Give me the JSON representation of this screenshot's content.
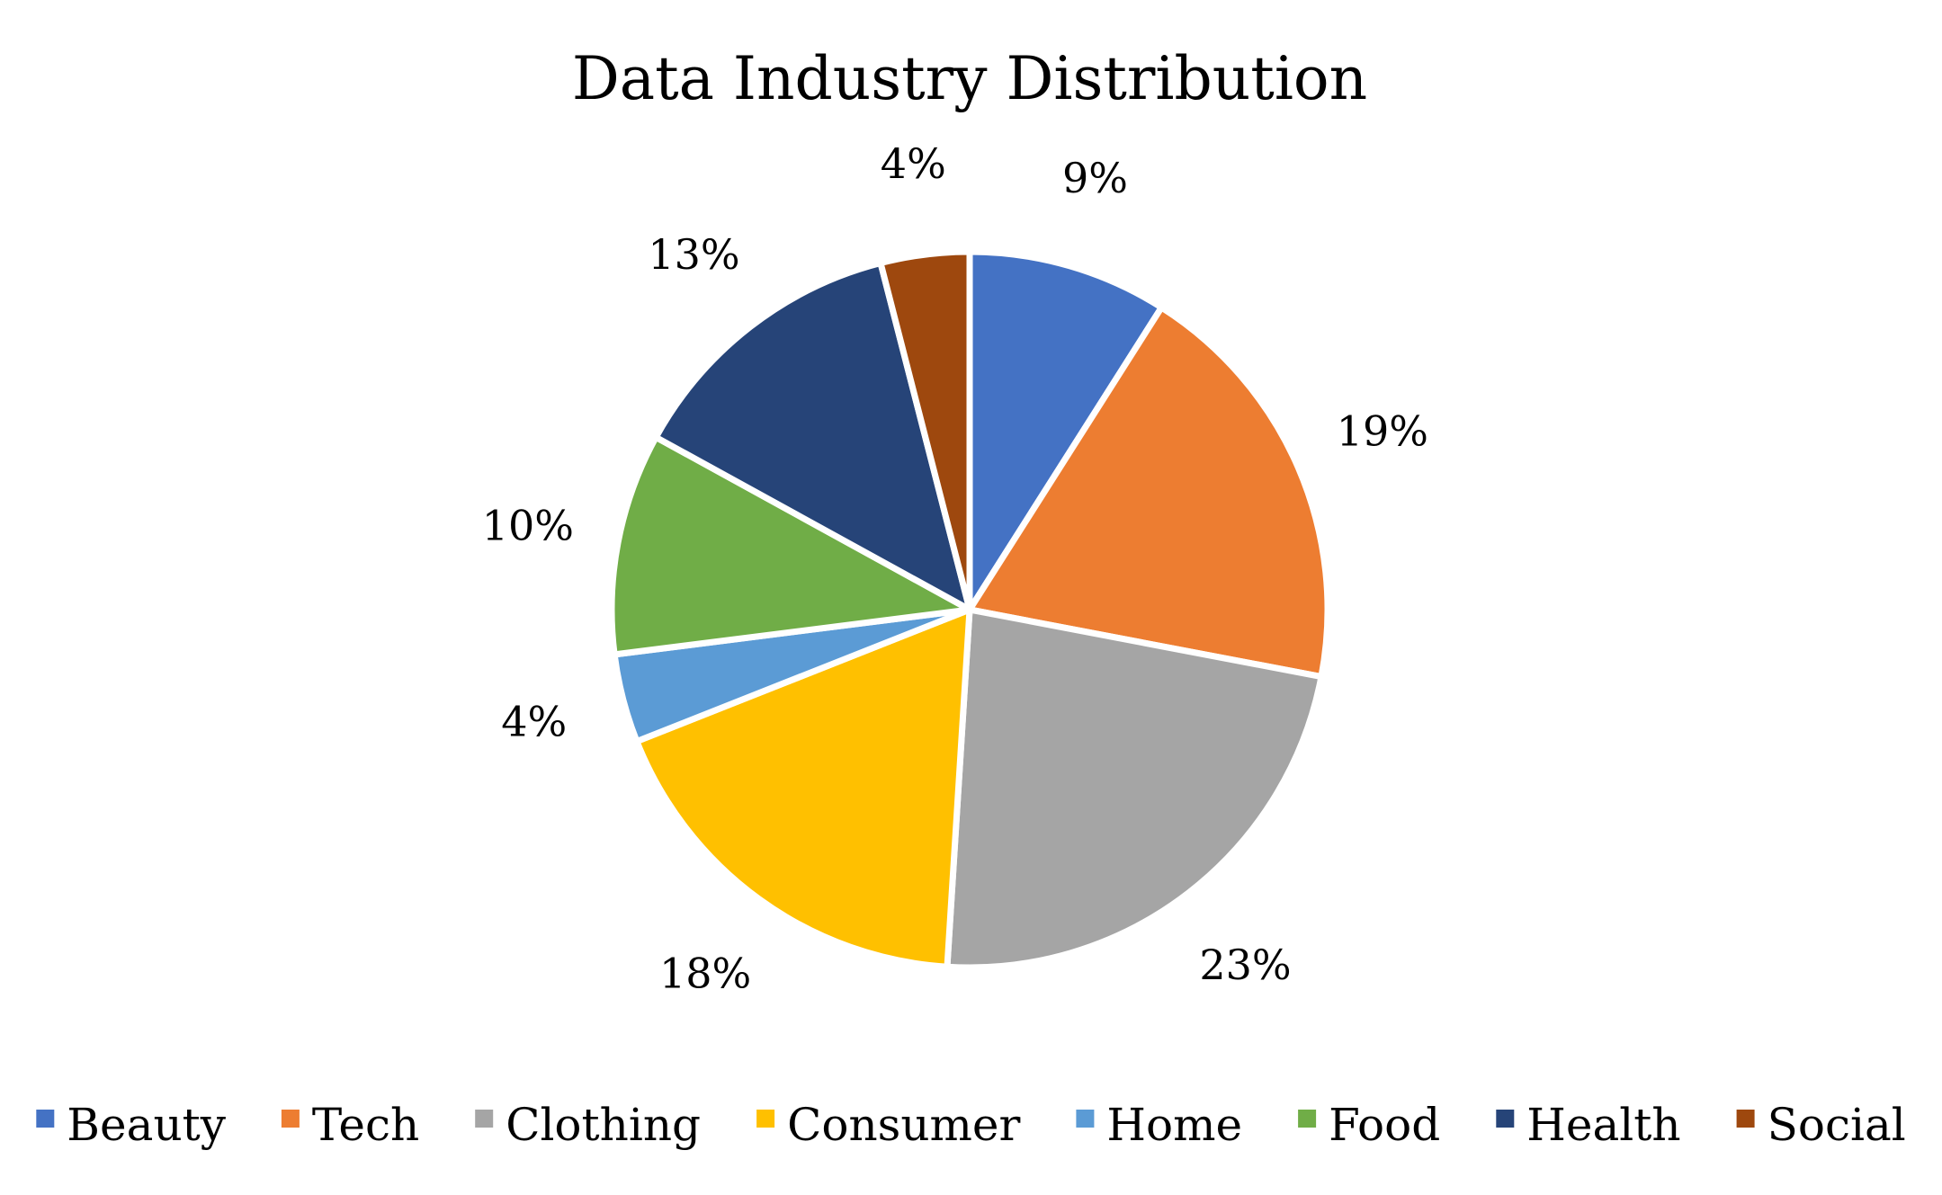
{
  "chart_data": {
    "type": "pie",
    "title": "Data Industry Distribution",
    "start_angle": "12 o'clock",
    "direction": "clockwise",
    "legend_position": "bottom",
    "categories": [
      "Beauty",
      "Tech",
      "Clothing",
      "Consumer",
      "Home",
      "Food",
      "Health",
      "Social"
    ],
    "values": [
      9,
      19,
      23,
      18,
      4,
      10,
      13,
      4
    ],
    "labels": [
      "9%",
      "19%",
      "23%",
      "18%",
      "4%",
      "10%",
      "13%",
      "4%"
    ],
    "colors": [
      "#4472C4",
      "#ED7D31",
      "#A5A5A5",
      "#FFC000",
      "#5B9BD5",
      "#70AD47",
      "#264478",
      "#9E480E"
    ]
  }
}
